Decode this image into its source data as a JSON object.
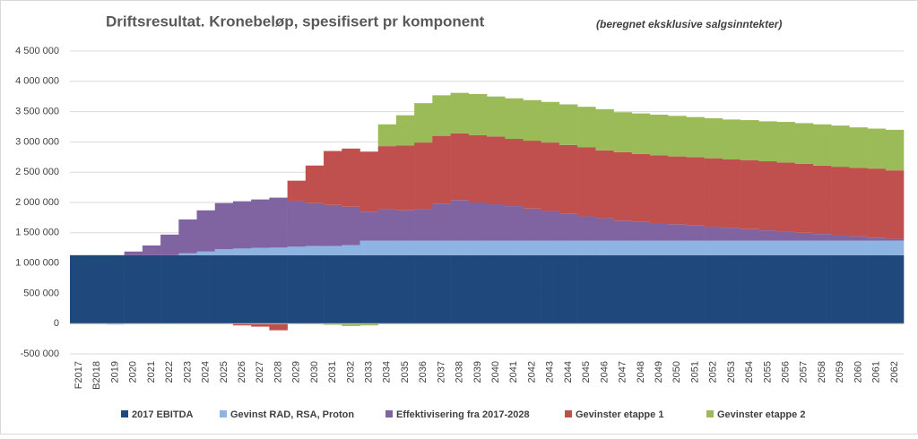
{
  "chart_data": {
    "type": "stacked-bar",
    "title": "Driftsresultat. Kronebeløp, spesifisert pr komponent",
    "subtitle": "(beregnet eksklusive salgsinntekter)",
    "categories": [
      "F2017",
      "B2018",
      "2019",
      "2020",
      "2021",
      "2022",
      "2023",
      "2024",
      "2025",
      "2026",
      "2027",
      "2028",
      "2029",
      "2030",
      "2031",
      "2032",
      "2033",
      "2034",
      "2035",
      "2036",
      "2037",
      "2038",
      "2039",
      "2040",
      "2041",
      "2042",
      "2043",
      "2044",
      "2045",
      "2046",
      "2047",
      "2048",
      "2049",
      "2050",
      "2051",
      "2052",
      "2053",
      "2054",
      "2055",
      "2056",
      "2057",
      "2058",
      "2059",
      "2060",
      "2061",
      "2062"
    ],
    "ylim": [
      -500000,
      4500000
    ],
    "yticks": [
      {
        "value": -500000,
        "label": "-500 000"
      },
      0,
      {
        "value": 500000,
        "label": "500 000"
      },
      {
        "value": 1000000,
        "label": "1 000 000"
      },
      {
        "value": 1500000,
        "label": "1 500 000"
      },
      {
        "value": 2000000,
        "label": "2 000 000"
      },
      {
        "value": 2500000,
        "label": "2 500 000"
      },
      {
        "value": 3000000,
        "label": "3 000 000"
      },
      {
        "value": 3500000,
        "label": "3 500 000"
      },
      {
        "value": 4000000,
        "label": "4 000 000"
      },
      {
        "value": 4500000,
        "label": "4 500 000"
      }
    ],
    "grid": true,
    "legend": "bottom",
    "series": [
      {
        "name": "2017 EBITDA",
        "color": "#1f497d",
        "values": [
          1130000,
          1130000,
          1130000,
          1130000,
          1130000,
          1130000,
          1130000,
          1130000,
          1130000,
          1130000,
          1130000,
          1130000,
          1130000,
          1130000,
          1130000,
          1130000,
          1130000,
          1130000,
          1130000,
          1130000,
          1130000,
          1130000,
          1130000,
          1130000,
          1130000,
          1130000,
          1130000,
          1130000,
          1130000,
          1130000,
          1130000,
          1130000,
          1130000,
          1130000,
          1130000,
          1130000,
          1130000,
          1130000,
          1130000,
          1130000,
          1130000,
          1130000,
          1130000,
          1130000,
          1130000,
          1130000
        ]
      },
      {
        "name": "Gevinst RAD, RSA, Proton",
        "color": "#8db4e2",
        "values": [
          0,
          0,
          -15000,
          0,
          0,
          0,
          30000,
          60000,
          100000,
          110000,
          120000,
          125000,
          140000,
          150000,
          150000,
          165000,
          240000,
          240000,
          240000,
          240000,
          240000,
          240000,
          240000,
          240000,
          240000,
          240000,
          240000,
          240000,
          240000,
          240000,
          240000,
          240000,
          240000,
          240000,
          240000,
          240000,
          240000,
          240000,
          240000,
          240000,
          240000,
          240000,
          240000,
          240000,
          240000,
          240000
        ]
      },
      {
        "name": "Effektivisering fra 2017-2028",
        "color": "#8064a2",
        "values": [
          0,
          0,
          0,
          60000,
          160000,
          340000,
          560000,
          680000,
          760000,
          780000,
          800000,
          825000,
          760000,
          710000,
          680000,
          635000,
          480000,
          520000,
          500000,
          520000,
          610000,
          670000,
          630000,
          600000,
          570000,
          530000,
          490000,
          450000,
          400000,
          370000,
          330000,
          310000,
          290000,
          270000,
          250000,
          230000,
          210000,
          190000,
          170000,
          150000,
          130000,
          110000,
          90000,
          70000,
          50000,
          30000
        ]
      },
      {
        "name": "Gevinster etappe 1",
        "color": "#c0504d",
        "values": [
          0,
          0,
          0,
          0,
          0,
          0,
          0,
          0,
          0,
          -30000,
          -50000,
          -110000,
          330000,
          620000,
          890000,
          960000,
          990000,
          1040000,
          1070000,
          1100000,
          1120000,
          1100000,
          1110000,
          1120000,
          1110000,
          1120000,
          1130000,
          1130000,
          1140000,
          1120000,
          1130000,
          1120000,
          1120000,
          1120000,
          1130000,
          1130000,
          1130000,
          1140000,
          1140000,
          1140000,
          1140000,
          1130000,
          1130000,
          1130000,
          1140000,
          1130000
        ]
      },
      {
        "name": "Gevinster etappe 2",
        "color": "#9bbb59",
        "values": [
          0,
          0,
          0,
          0,
          0,
          0,
          0,
          0,
          0,
          0,
          0,
          0,
          0,
          0,
          -20000,
          -40000,
          -30000,
          360000,
          500000,
          650000,
          670000,
          670000,
          680000,
          660000,
          670000,
          670000,
          670000,
          670000,
          670000,
          680000,
          660000,
          670000,
          670000,
          670000,
          660000,
          660000,
          660000,
          660000,
          660000,
          670000,
          670000,
          680000,
          680000,
          670000,
          660000,
          670000
        ]
      }
    ]
  }
}
